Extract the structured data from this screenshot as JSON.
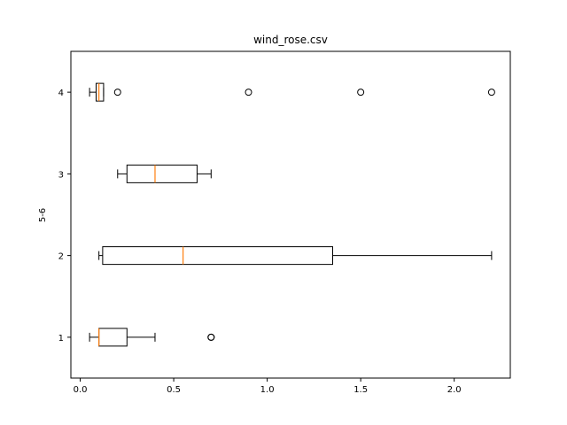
{
  "chart_data": {
    "type": "boxplot",
    "orientation": "horizontal",
    "title": "wind_rose.csv",
    "xlabel": "",
    "ylabel": "5-6",
    "xlim": [
      -0.05,
      2.3
    ],
    "ylim": [
      0.5,
      4.5
    ],
    "x_ticks": [
      0.0,
      0.5,
      1.0,
      1.5,
      2.0
    ],
    "x_tick_labels": [
      "0.0",
      "0.5",
      "1.0",
      "1.5",
      "2.0"
    ],
    "y_tick_labels": [
      "1",
      "2",
      "3",
      "4"
    ],
    "grid": false,
    "colors": {
      "box": "#000000",
      "median": "#ff7f0e",
      "flier": "#000000"
    },
    "boxes": [
      {
        "position": 1,
        "whisker_low": 0.05,
        "q1": 0.1,
        "median": 0.1,
        "q3": 0.25,
        "whisker_high": 0.4,
        "fliers": [
          0.7,
          0.7
        ]
      },
      {
        "position": 2,
        "whisker_low": 0.1,
        "q1": 0.12,
        "median": 0.55,
        "q3": 1.35,
        "whisker_high": 2.2,
        "fliers": []
      },
      {
        "position": 3,
        "whisker_low": 0.2,
        "q1": 0.25,
        "median": 0.4,
        "q3": 0.625,
        "whisker_high": 0.7,
        "fliers": []
      },
      {
        "position": 4,
        "whisker_low": 0.05,
        "q1": 0.085,
        "median": 0.1,
        "q3": 0.125,
        "whisker_high": 0.125,
        "fliers": [
          0.2,
          0.9,
          1.5,
          2.2
        ]
      }
    ]
  }
}
